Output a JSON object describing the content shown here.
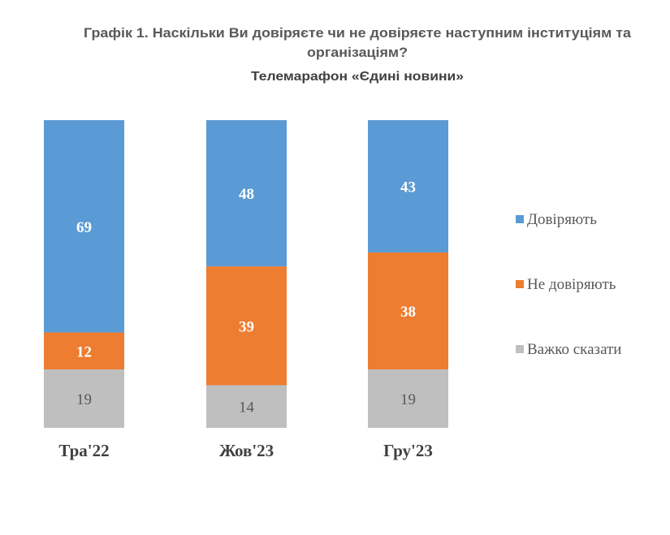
{
  "chart_data": {
    "type": "bar",
    "stacked": true,
    "title": "Графік 1. Наскільки Ви довіряєте чи не довіряєте наступним інституціям та організаціям?",
    "title_lines": [
      "Графік 1. Наскільки Ви довіряєте чи не довіряєте наступним інституціям та",
      "організаціям?"
    ],
    "subtitle": "Телемарафон «Єдині новини»",
    "categories": [
      "Тра'22",
      "Жов'23",
      "Гру'23"
    ],
    "series": [
      {
        "name": "Важко сказати",
        "values": [
          19,
          14,
          19
        ],
        "color": "#BFBFBF",
        "label_color": "#595959",
        "label_bold": false
      },
      {
        "name": "Не довіряють",
        "values": [
          12,
          39,
          38
        ],
        "color": "#ED7D31",
        "label_color": "#FFFFFF",
        "label_bold": true
      },
      {
        "name": "Довіряють",
        "values": [
          69,
          48,
          43
        ],
        "color": "#5B9BD5",
        "label_color": "#FFFFFF",
        "label_bold": true
      }
    ],
    "legend_order": [
      "Довіряють",
      "Не довіряють",
      "Важко сказати"
    ],
    "legend_position": "right",
    "xlabel": "",
    "ylabel": "",
    "grid": false,
    "axes_visible": false
  }
}
